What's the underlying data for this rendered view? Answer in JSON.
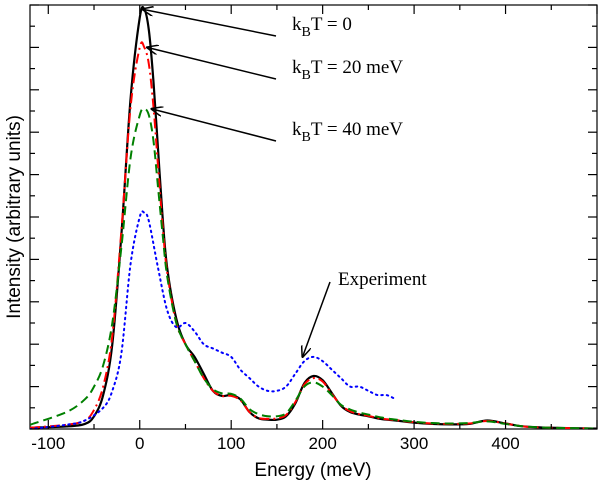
{
  "chart_data": {
    "type": "line",
    "title": "",
    "xlabel": "Energy (meV)",
    "ylabel": "Intensity (arbitrary units)",
    "xlim": [
      -120,
      500
    ],
    "ylim": [
      0,
      1.0
    ],
    "x_ticks": [
      -100,
      0,
      100,
      200,
      300,
      400
    ],
    "y_tick_labels_shown": false,
    "grid": false,
    "legend": "none",
    "series": [
      {
        "style": "solid",
        "color": "#000000",
        "x": [
          -120,
          -80,
          -60,
          -50,
          -40,
          -30,
          -20,
          -10,
          0,
          5,
          10,
          15,
          20,
          25,
          30,
          40,
          50,
          60,
          70,
          80,
          90,
          100,
          110,
          120,
          130,
          140,
          150,
          160,
          170,
          180,
          190,
          200,
          210,
          220,
          230,
          240,
          250,
          260,
          270,
          280,
          300,
          320,
          340,
          360,
          380,
          400,
          420,
          450,
          500
        ],
        "y": [
          0.003,
          0.006,
          0.012,
          0.03,
          0.08,
          0.2,
          0.46,
          0.78,
          0.97,
          0.99,
          0.94,
          0.82,
          0.66,
          0.5,
          0.38,
          0.26,
          0.2,
          0.17,
          0.13,
          0.09,
          0.078,
          0.08,
          0.07,
          0.04,
          0.025,
          0.022,
          0.022,
          0.03,
          0.06,
          0.108,
          0.125,
          0.115,
          0.085,
          0.055,
          0.04,
          0.034,
          0.03,
          0.025,
          0.022,
          0.02,
          0.015,
          0.012,
          0.011,
          0.012,
          0.02,
          0.013,
          0.006,
          0.003,
          0.001
        ]
      },
      {
        "style": "dash-dot",
        "color": "#ff0000",
        "x": [
          -120,
          -80,
          -60,
          -50,
          -40,
          -30,
          -20,
          -10,
          0,
          5,
          10,
          15,
          20,
          25,
          30,
          40,
          50,
          60,
          70,
          80,
          90,
          100,
          110,
          120,
          130,
          140,
          150,
          160,
          170,
          180,
          190,
          200,
          210,
          220,
          230,
          240,
          250,
          260,
          270,
          280,
          300,
          320,
          340,
          360,
          380,
          400,
          420,
          450,
          500
        ],
        "y": [
          0.003,
          0.01,
          0.02,
          0.045,
          0.1,
          0.22,
          0.47,
          0.76,
          0.9,
          0.9,
          0.86,
          0.76,
          0.62,
          0.48,
          0.37,
          0.25,
          0.2,
          0.16,
          0.12,
          0.09,
          0.078,
          0.078,
          0.068,
          0.04,
          0.026,
          0.024,
          0.025,
          0.033,
          0.063,
          0.105,
          0.12,
          0.112,
          0.083,
          0.056,
          0.042,
          0.035,
          0.031,
          0.026,
          0.023,
          0.021,
          0.016,
          0.013,
          0.012,
          0.013,
          0.019,
          0.013,
          0.006,
          0.003,
          0.001
        ]
      },
      {
        "style": "dashed",
        "color": "#008000",
        "x": [
          -120,
          -80,
          -60,
          -50,
          -40,
          -30,
          -20,
          -10,
          0,
          5,
          10,
          15,
          20,
          25,
          30,
          40,
          50,
          60,
          70,
          80,
          90,
          100,
          110,
          120,
          130,
          140,
          150,
          160,
          170,
          180,
          190,
          200,
          210,
          220,
          230,
          240,
          250,
          260,
          270,
          280,
          300,
          320,
          340,
          360,
          380,
          400,
          420,
          450,
          500
        ],
        "y": [
          0.01,
          0.04,
          0.07,
          0.1,
          0.15,
          0.25,
          0.43,
          0.64,
          0.74,
          0.755,
          0.74,
          0.68,
          0.57,
          0.46,
          0.36,
          0.25,
          0.2,
          0.16,
          0.12,
          0.094,
          0.084,
          0.083,
          0.072,
          0.047,
          0.035,
          0.03,
          0.03,
          0.037,
          0.066,
          0.1,
          0.11,
          0.1,
          0.08,
          0.057,
          0.046,
          0.039,
          0.034,
          0.029,
          0.025,
          0.022,
          0.017,
          0.014,
          0.013,
          0.014,
          0.018,
          0.012,
          0.006,
          0.003,
          0.001
        ]
      },
      {
        "style": "dotted",
        "color": "#0000ff",
        "x": [
          -120,
          -80,
          -60,
          -40,
          -30,
          -20,
          -10,
          0,
          5,
          10,
          20,
          30,
          40,
          50,
          60,
          70,
          80,
          90,
          100,
          110,
          120,
          130,
          140,
          150,
          160,
          170,
          180,
          190,
          200,
          210,
          220,
          230,
          240,
          250,
          260,
          270,
          280
        ],
        "y": [
          0.0,
          0.01,
          0.02,
          0.05,
          0.09,
          0.18,
          0.39,
          0.5,
          0.51,
          0.49,
          0.38,
          0.28,
          0.24,
          0.25,
          0.23,
          0.2,
          0.19,
          0.18,
          0.17,
          0.14,
          0.12,
          0.1,
          0.09,
          0.09,
          0.1,
          0.13,
          0.16,
          0.17,
          0.16,
          0.14,
          0.12,
          0.1,
          0.1,
          0.09,
          0.08,
          0.08,
          0.07
        ]
      }
    ],
    "annotations": [
      {
        "text": "k",
        "sub": "B",
        "rest": "T = 0",
        "target_x": 3,
        "target_y": 0.99
      },
      {
        "text": "k",
        "sub": "B",
        "rest": "T = 20 meV",
        "target_x": 8,
        "target_y": 0.9
      },
      {
        "text": "k",
        "sub": "B",
        "rest": "T = 40 meV",
        "target_x": 13,
        "target_y": 0.755
      },
      {
        "text": "Experiment",
        "target_x": 178,
        "target_y": 0.17
      }
    ]
  }
}
